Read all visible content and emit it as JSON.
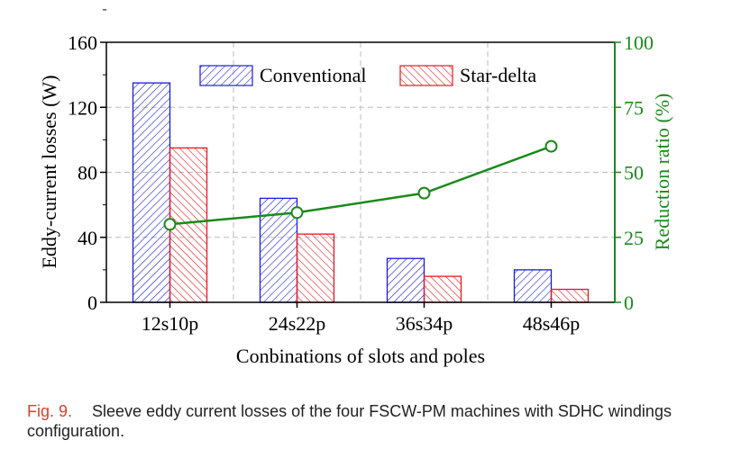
{
  "chart_data": {
    "type": "bar",
    "categories": [
      "12s10p",
      "24s22p",
      "36s34p",
      "48s46p"
    ],
    "series": [
      {
        "name": "Conventional",
        "values": [
          135,
          64,
          27,
          20
        ],
        "color": "#1a1adf",
        "axis": "left",
        "type": "bar"
      },
      {
        "name": "Star-delta",
        "values": [
          95,
          42,
          16,
          8
        ],
        "color": "#e8171c",
        "axis": "left",
        "type": "bar"
      },
      {
        "name": "Reduction ratio",
        "values": [
          30,
          34.5,
          42,
          60
        ],
        "color": "#1a8a1a",
        "axis": "right",
        "type": "line"
      }
    ],
    "xlabel": "Conbinations of slots and poles",
    "ylabel": "Eddy-current losses (W)",
    "y2label": "Reduction ratio (%)",
    "ylim": [
      0,
      160
    ],
    "y2lim": [
      0,
      100
    ],
    "yticks": [
      "0",
      "40",
      "80",
      "120",
      "160"
    ],
    "y2ticks": [
      "0",
      "25",
      "50",
      "75",
      "100"
    ],
    "grid": true,
    "legend": "top"
  },
  "caption": {
    "label": "Fig. 9.",
    "text": "Sleeve eddy current losses of the four FSCW-PM machines with SDHC windings configuration."
  }
}
